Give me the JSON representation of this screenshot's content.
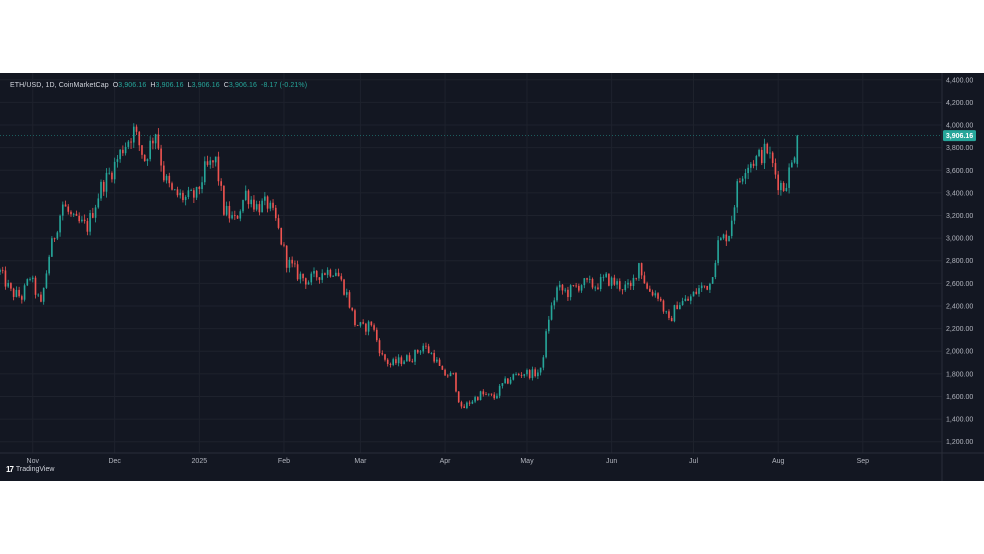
{
  "legend": {
    "symbol": "ETH/USD, 1D, CoinMarketCap",
    "o_label": "O",
    "o_value": "3,906.16",
    "h_label": "H",
    "h_value": "3,906.16",
    "l_label": "L",
    "l_value": "3,906.16",
    "c_label": "C",
    "c_value": "3,906.16",
    "change": "-8.17 (-0.21%)"
  },
  "brand": {
    "name": "TradingView"
  },
  "colors": {
    "background": "#131722",
    "up": "#26a69a",
    "down": "#ef5350",
    "grid": "#1e222d",
    "axis_text": "#b2b5be",
    "price_line": "#26a69a"
  },
  "chart_data": {
    "type": "candlestick",
    "title": "",
    "xlabel": "",
    "ylabel": "",
    "ylim": [
      1100,
      4460
    ],
    "y_ticks": [
      4400,
      4200,
      4000,
      3800,
      3600,
      3400,
      3200,
      3000,
      2800,
      2600,
      2400,
      2200,
      2000,
      1800,
      1600,
      1400,
      1200
    ],
    "y_tick_labels": [
      "4,400.00",
      "4,200.00",
      "4,000.00",
      "3,800.00",
      "3,600.00",
      "3,400.00",
      "3,200.00",
      "3,000.00",
      "2,800.00",
      "2,600.00",
      "2,400.00",
      "2,200.00",
      "2,000.00",
      "1,800.00",
      "1,600.00",
      "1,400.00",
      "1,200.00"
    ],
    "x_range": [
      "2024-10-20",
      "2025-09-30"
    ],
    "x_ticks": [
      {
        "label": "Nov",
        "date": "2024-11-01"
      },
      {
        "label": "Dec",
        "date": "2024-12-01"
      },
      {
        "label": "2025",
        "date": "2025-01-01"
      },
      {
        "label": "Feb",
        "date": "2025-02-01"
      },
      {
        "label": "Mar",
        "date": "2025-03-01"
      },
      {
        "label": "Apr",
        "date": "2025-04-01"
      },
      {
        "label": "May",
        "date": "2025-05-01"
      },
      {
        "label": "Jun",
        "date": "2025-06-01"
      },
      {
        "label": "Jul",
        "date": "2025-07-01"
      },
      {
        "label": "Aug",
        "date": "2025-08-01"
      },
      {
        "label": "Sep",
        "date": "2025-09-01"
      }
    ],
    "last_price": 3906.16,
    "last_price_label": "3,906.16",
    "grid": true,
    "series": [
      {
        "anchors": [
          [
            "2024-10-20",
            2700
          ],
          [
            "2024-10-24",
            2520
          ],
          [
            "2024-10-28",
            2480
          ],
          [
            "2024-10-31",
            2660
          ],
          [
            "2024-11-04",
            2400
          ],
          [
            "2024-11-07",
            2850
          ],
          [
            "2024-11-12",
            3300
          ],
          [
            "2024-11-16",
            3150
          ],
          [
            "2024-11-21",
            3100
          ],
          [
            "2024-11-26",
            3450
          ],
          [
            "2024-11-30",
            3600
          ],
          [
            "2024-12-04",
            3800
          ],
          [
            "2024-12-08",
            3950
          ],
          [
            "2024-12-12",
            3700
          ],
          [
            "2024-12-16",
            3950
          ],
          [
            "2024-12-19",
            3550
          ],
          [
            "2024-12-22",
            3400
          ],
          [
            "2024-12-27",
            3350
          ],
          [
            "2024-12-31",
            3380
          ],
          [
            "2025-01-03",
            3600
          ],
          [
            "2025-01-07",
            3680
          ],
          [
            "2025-01-10",
            3250
          ],
          [
            "2025-01-14",
            3150
          ],
          [
            "2025-01-18",
            3400
          ],
          [
            "2025-01-22",
            3280
          ],
          [
            "2025-01-26",
            3300
          ],
          [
            "2025-01-29",
            3150
          ],
          [
            "2025-02-02",
            2800
          ],
          [
            "2025-02-06",
            2680
          ],
          [
            "2025-02-10",
            2620
          ],
          [
            "2025-02-15",
            2700
          ],
          [
            "2025-02-20",
            2720
          ],
          [
            "2025-02-24",
            2500
          ],
          [
            "2025-02-27",
            2250
          ],
          [
            "2025-03-02",
            2200
          ],
          [
            "2025-03-05",
            2250
          ],
          [
            "2025-03-09",
            1950
          ],
          [
            "2025-03-12",
            1880
          ],
          [
            "2025-03-16",
            1920
          ],
          [
            "2025-03-20",
            1950
          ],
          [
            "2025-03-24",
            2050
          ],
          [
            "2025-03-28",
            1950
          ],
          [
            "2025-03-31",
            1800
          ],
          [
            "2025-04-04",
            1780
          ],
          [
            "2025-04-07",
            1480
          ],
          [
            "2025-04-10",
            1550
          ],
          [
            "2025-04-14",
            1620
          ],
          [
            "2025-04-19",
            1590
          ],
          [
            "2025-04-22",
            1700
          ],
          [
            "2025-04-26",
            1780
          ],
          [
            "2025-04-30",
            1810
          ],
          [
            "2025-05-03",
            1800
          ],
          [
            "2025-05-06",
            1820
          ],
          [
            "2025-05-09",
            2300
          ],
          [
            "2025-05-12",
            2550
          ],
          [
            "2025-05-16",
            2520
          ],
          [
            "2025-05-21",
            2600
          ],
          [
            "2025-05-26",
            2580
          ],
          [
            "2025-05-30",
            2640
          ],
          [
            "2025-06-04",
            2580
          ],
          [
            "2025-06-08",
            2550
          ],
          [
            "2025-06-11",
            2780
          ],
          [
            "2025-06-14",
            2550
          ],
          [
            "2025-06-18",
            2500
          ],
          [
            "2025-06-22",
            2250
          ],
          [
            "2025-06-25",
            2420
          ],
          [
            "2025-06-29",
            2450
          ],
          [
            "2025-07-03",
            2550
          ],
          [
            "2025-07-07",
            2600
          ],
          [
            "2025-07-10",
            2950
          ],
          [
            "2025-07-14",
            3050
          ],
          [
            "2025-07-17",
            3450
          ],
          [
            "2025-07-20",
            3650
          ],
          [
            "2025-07-24",
            3700
          ],
          [
            "2025-07-28",
            3780
          ],
          [
            "2025-08-01",
            3500
          ],
          [
            "2025-08-03",
            3450
          ],
          [
            "2025-08-06",
            3650
          ],
          [
            "2025-08-08",
            3906
          ]
        ]
      }
    ]
  }
}
